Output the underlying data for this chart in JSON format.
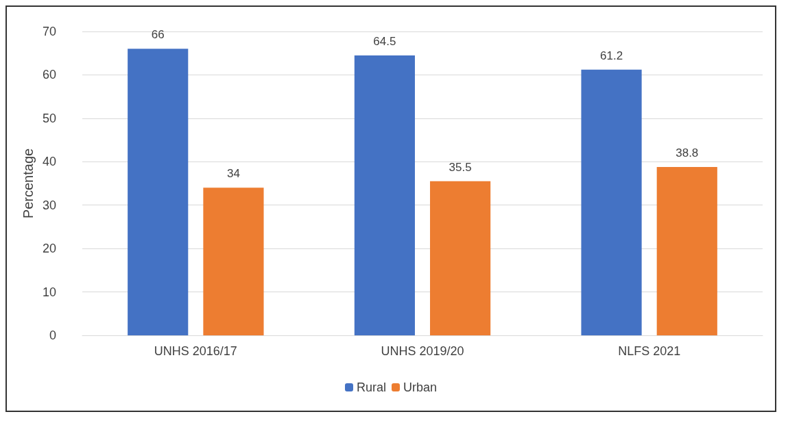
{
  "chart_data": {
    "type": "bar",
    "ylabel": "Percentage",
    "categories": [
      "UNHS 2016/17",
      "UNHS 2019/20",
      "NLFS 2021"
    ],
    "series": [
      {
        "name": "Rural",
        "color": "#4472c4",
        "values": [
          66,
          64.5,
          61.2
        ]
      },
      {
        "name": "Urban",
        "color": "#ed7d31",
        "values": [
          34,
          35.5,
          38.8
        ]
      }
    ],
    "ylim": [
      0,
      70
    ],
    "yticks": [
      0,
      10,
      20,
      30,
      40,
      50,
      60,
      70
    ],
    "grid": "y",
    "legend": "bottom",
    "data_labels": true
  }
}
